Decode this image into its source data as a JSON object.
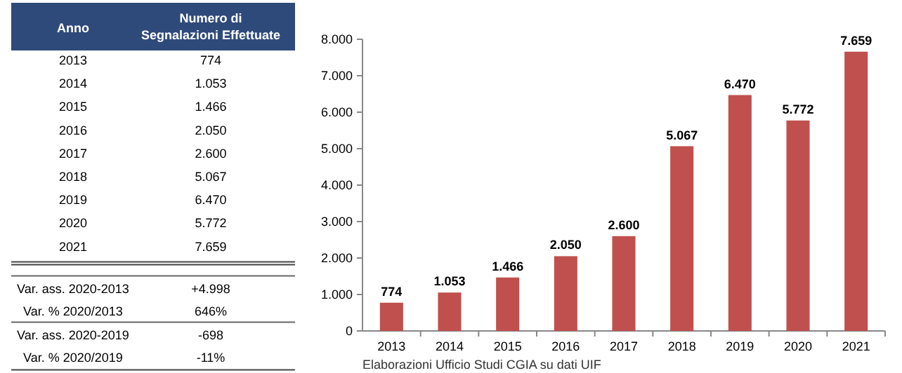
{
  "chart_data": {
    "type": "bar",
    "categories": [
      "2013",
      "2014",
      "2015",
      "2016",
      "2017",
      "2018",
      "2019",
      "2020",
      "2021"
    ],
    "values": [
      774,
      1053,
      1466,
      2050,
      2600,
      5067,
      6470,
      5772,
      7659
    ],
    "value_labels": [
      "774",
      "1.053",
      "1.466",
      "2.050",
      "2.600",
      "5.067",
      "6.470",
      "5.772",
      "7.659"
    ],
    "color": "#c0504d",
    "ylim": [
      0,
      8000
    ],
    "yticks": [
      0,
      {
        "value": 1000,
        "label": "1.000"
      },
      {
        "value": 2000,
        "label": "2.000"
      },
      {
        "value": 3000,
        "label": "3.000"
      },
      {
        "value": 4000,
        "label": "4.000"
      },
      {
        "value": 5000,
        "label": "5.000"
      },
      {
        "value": 6000,
        "label": "6.000"
      },
      {
        "value": 7000,
        "label": "7.000"
      },
      {
        "value": 8000,
        "label": "8.000"
      }
    ],
    "grid": false,
    "annotations": [
      "Anno",
      "Numero di Segnalazioni Effettuate",
      "Var. ass. 2020-2013",
      "+4.998",
      "Var. % 2020/2013",
      "646%",
      "Var. ass. 2020-2019",
      "-698",
      "Var. % 2020/2019",
      "-11%",
      "Elaborazioni Ufficio Studi CGIA su dati UIF"
    ]
  }
}
